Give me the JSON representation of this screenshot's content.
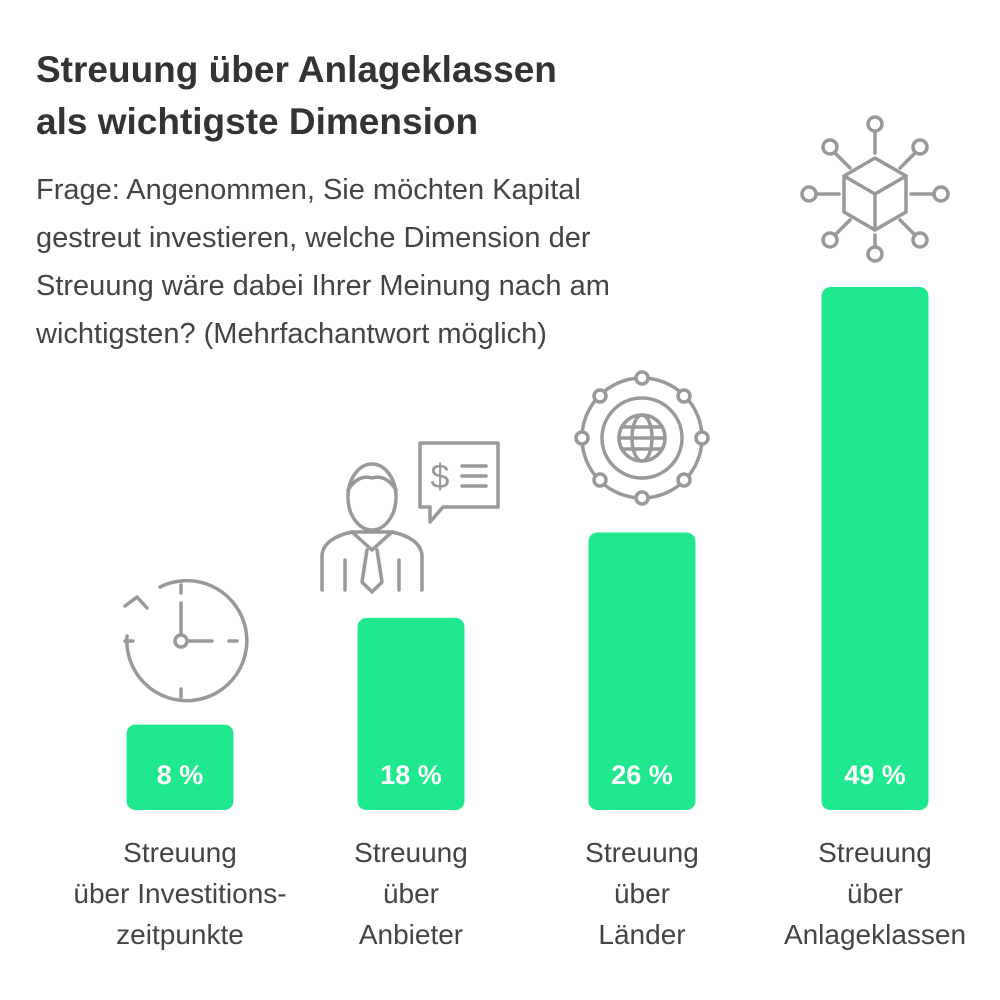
{
  "header": {
    "title_lines": [
      "Streuung über Anlageklassen",
      "als wichtigste Dimension"
    ],
    "question_lines": [
      "Frage: Angenommen, Sie möchten Kapital",
      "gestreut investieren, welche Dimension der",
      "Streuung wäre dabei Ihrer Meinung nach am",
      "wichtigsten? (Mehrfachantwort möglich)"
    ]
  },
  "colors": {
    "bar": "#1fe88f",
    "icon": "#999999",
    "title": "#333333",
    "text": "#444444"
  },
  "chart_data": {
    "type": "bar",
    "categories": [
      "Streuung über Investitionszeitpunkte",
      "Streuung über Anbieter",
      "Streuung über Länder",
      "Streuung über Anlageklassen"
    ],
    "category_label_lines": [
      [
        "Streuung",
        "über Investitions-",
        "zeitpunkte"
      ],
      [
        "Streuung",
        "über",
        "Anbieter"
      ],
      [
        "Streuung",
        "über",
        "Länder"
      ],
      [
        "Streuung",
        "über",
        "Anlageklassen"
      ]
    ],
    "values": [
      8,
      18,
      26,
      49
    ],
    "value_labels": [
      "8 %",
      "18 %",
      "26 %",
      "49 %"
    ],
    "icons": [
      "clock-icon",
      "advisor-icon",
      "globe-network-icon",
      "cube-network-icon"
    ],
    "unit": "%",
    "ylim": [
      0,
      49
    ],
    "grid": false,
    "legend": "none"
  }
}
